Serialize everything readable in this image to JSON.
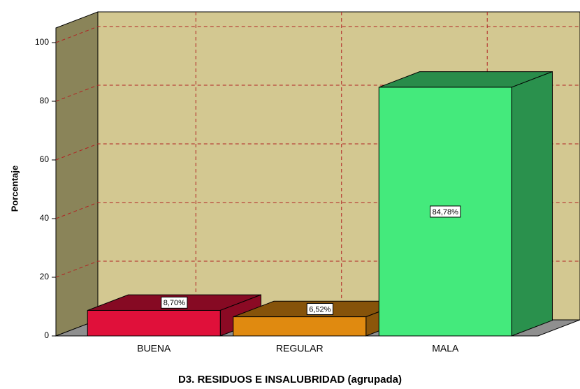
{
  "chart_data": {
    "type": "bar3d",
    "title": "D3. RESIDUOS E INSALUBRIDAD (agrupada)",
    "y_label": "Porcentaje",
    "categories": [
      "BUENA",
      "REGULAR",
      "MALA"
    ],
    "values": [
      8.7,
      6.52,
      84.78
    ],
    "value_labels": [
      "8,70%",
      "6,52%",
      "84,78%"
    ],
    "colors": [
      "#e0103a",
      "#e08a10",
      "#44ea7c"
    ],
    "ylim": [
      0,
      105
    ],
    "yticks": [
      0,
      20,
      40,
      60,
      80,
      100
    ],
    "grid": true
  }
}
